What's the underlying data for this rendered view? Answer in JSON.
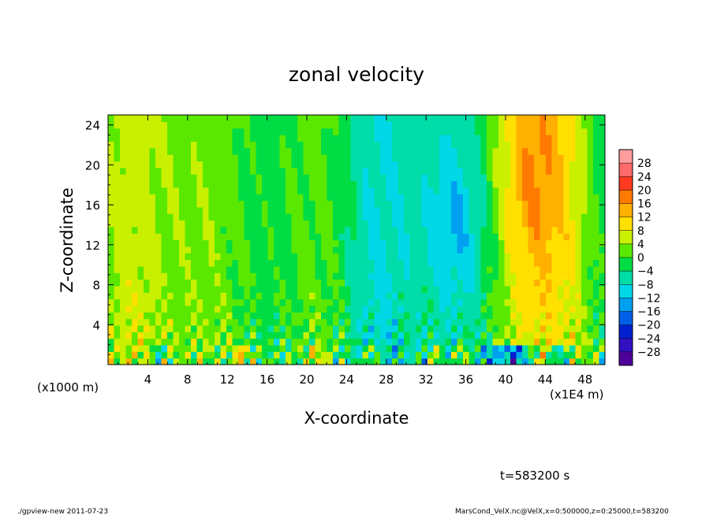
{
  "chart_data": {
    "type": "heatmap",
    "title": "zonal velocity",
    "xlabel": "X-coordinate",
    "ylabel": "Z-coordinate",
    "x_unit_left": "(x1000 m)",
    "x_unit_right": "(x1E4 m)",
    "xlim": [
      0,
      50
    ],
    "ylim": [
      0,
      25
    ],
    "x_ticks": [
      "4",
      "8",
      "12",
      "16",
      "20",
      "24",
      "28",
      "32",
      "36",
      "40",
      "44",
      "48"
    ],
    "x_tick_values": [
      4,
      8,
      12,
      16,
      20,
      24,
      28,
      32,
      36,
      40,
      44,
      48
    ],
    "y_ticks": [
      "4",
      "8",
      "12",
      "16",
      "20",
      "24"
    ],
    "y_tick_values": [
      4,
      8,
      12,
      16,
      20,
      24
    ],
    "colorbar": {
      "labels": [
        "28",
        "24",
        "20",
        "16",
        "12",
        "8",
        "4",
        "0",
        "−4",
        "−8",
        "−12",
        "−16",
        "−20",
        "−24",
        "−28"
      ],
      "values": [
        28,
        24,
        20,
        16,
        12,
        8,
        4,
        0,
        -4,
        -8,
        -12,
        -16,
        -20,
        -24,
        -28
      ],
      "colors": [
        "#ff9d9d",
        "#ff6a6a",
        "#ff3a20",
        "#ff7a00",
        "#ffb000",
        "#ffe000",
        "#c8f000",
        "#5ae800",
        "#00dd44",
        "#00dda8",
        "#00d8e8",
        "#00a0f0",
        "#0060e8",
        "#0020d0",
        "#3010c0",
        "#50009a"
      ]
    },
    "annotation_time": "t=583200 s",
    "footer_left": "./gpview-new  2011-07-23",
    "footer_right": "MarsCond_VelX.nc@VelX,x=0:500000,z=0:25000,t=583200"
  }
}
